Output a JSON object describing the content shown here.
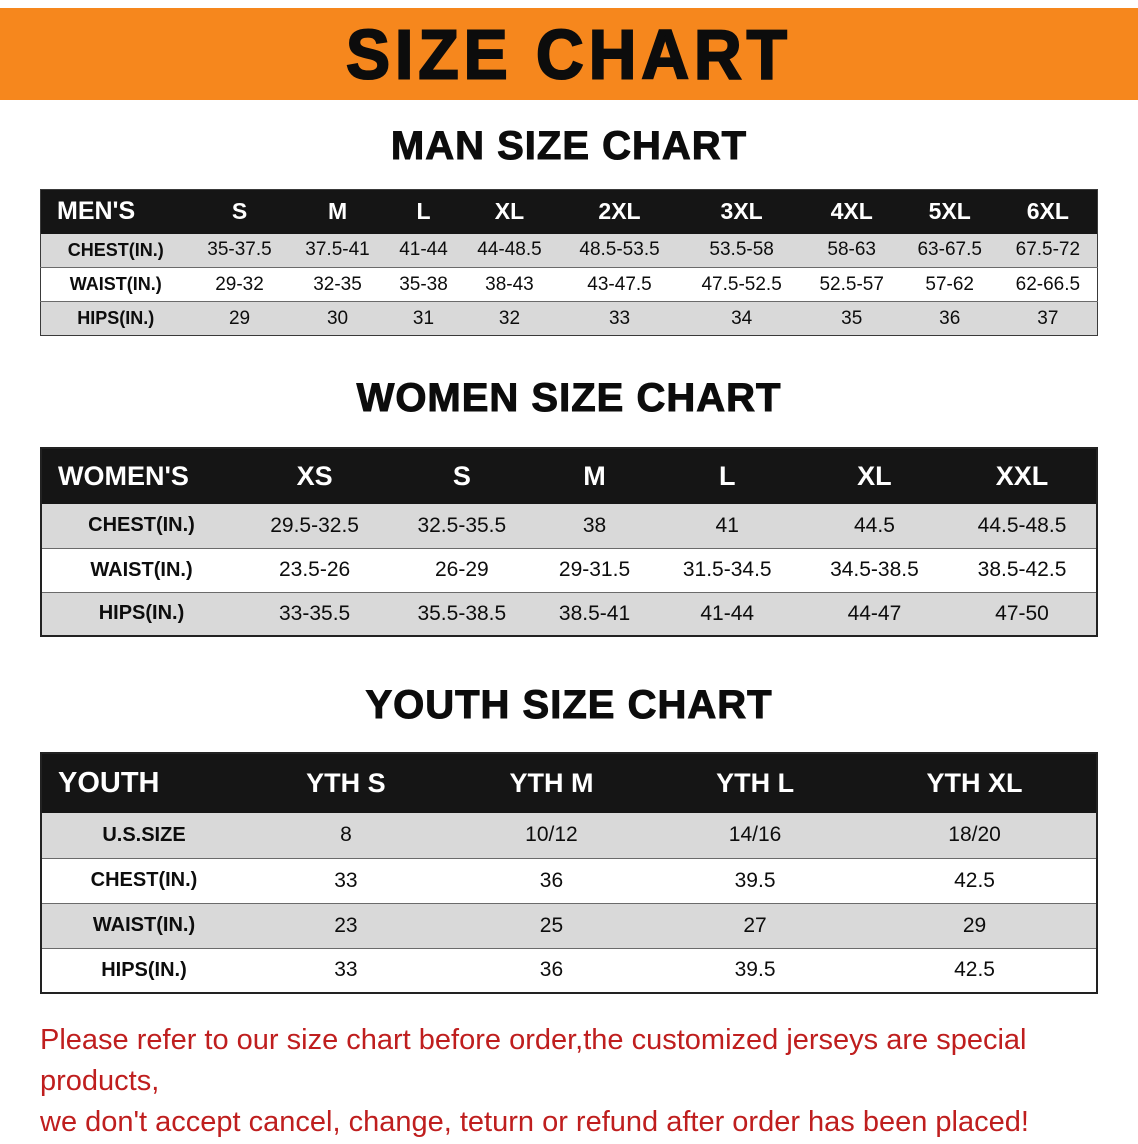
{
  "banner": {
    "title": "SIZE CHART",
    "bg_color": "#f6871d"
  },
  "sections": [
    {
      "id": "men",
      "title": "MAN SIZE CHART",
      "table": {
        "header": [
          "MEN'S",
          "S",
          "M",
          "L",
          "XL",
          "2XL",
          "3XL",
          "4XL",
          "5XL",
          "6XL"
        ],
        "rows": [
          [
            "CHEST(IN.)",
            "35-37.5",
            "37.5-41",
            "41-44",
            "44-48.5",
            "48.5-53.5",
            "53.5-58",
            "58-63",
            "63-67.5",
            "67.5-72"
          ],
          [
            "WAIST(IN.)",
            "29-32",
            "32-35",
            "35-38",
            "38-43",
            "43-47.5",
            "47.5-52.5",
            "52.5-57",
            "57-62",
            "62-66.5"
          ],
          [
            "HIPS(IN.)",
            "29",
            "30",
            "31",
            "32",
            "33",
            "34",
            "35",
            "36",
            "37"
          ]
        ]
      }
    },
    {
      "id": "women",
      "title": "WOMEN SIZE CHART",
      "table": {
        "header": [
          "WOMEN'S",
          "XS",
          "S",
          "M",
          "L",
          "XL",
          "XXL"
        ],
        "rows": [
          [
            "CHEST(IN.)",
            "29.5-32.5",
            "32.5-35.5",
            "38",
            "41",
            "44.5",
            "44.5-48.5"
          ],
          [
            "WAIST(IN.)",
            "23.5-26",
            "26-29",
            "29-31.5",
            "31.5-34.5",
            "34.5-38.5",
            "38.5-42.5"
          ],
          [
            "HIPS(IN.)",
            "33-35.5",
            "35.5-38.5",
            "38.5-41",
            "41-44",
            "44-47",
            "47-50"
          ]
        ]
      }
    },
    {
      "id": "youth",
      "title": "YOUTH SIZE CHART",
      "table": {
        "header": [
          "YOUTH",
          "YTH S",
          "YTH M",
          "YTH L",
          "YTH XL"
        ],
        "rows": [
          [
            "U.S.SIZE",
            "8",
            "10/12",
            "14/16",
            "18/20"
          ],
          [
            "CHEST(IN.)",
            "33",
            "36",
            "39.5",
            "42.5"
          ],
          [
            "WAIST(IN.)",
            "23",
            "25",
            "27",
            "29"
          ],
          [
            "HIPS(IN.)",
            "33",
            "36",
            "39.5",
            "42.5"
          ]
        ]
      }
    }
  ],
  "footer": {
    "lines": [
      "Please refer to our size chart before order,the customized jerseys are special products,",
      "we don't accept cancel, change, teturn or refund after order has been placed!"
    ],
    "text_color": "#bf1e1e"
  },
  "colors": {
    "header_row_bg": "#151515",
    "shaded_row_bg": "#d9d9d9",
    "banner_bg": "#f6871d"
  }
}
